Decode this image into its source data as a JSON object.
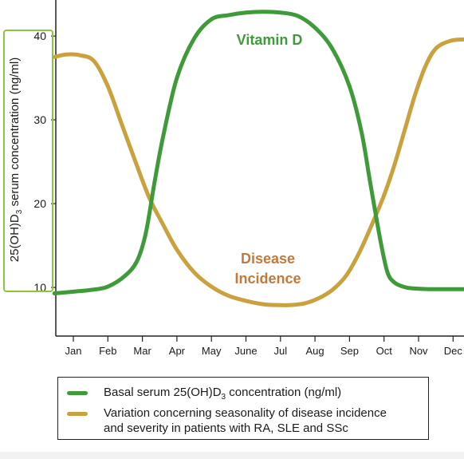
{
  "chart_data": {
    "type": "line",
    "ylabel_parts": [
      "25(OH)D",
      "3",
      " serum concentration (ng/ml)"
    ],
    "categories": [
      "Jan",
      "Feb",
      "Mar",
      "Apr",
      "May",
      "June",
      "Jul",
      "Aug",
      "Sep",
      "Oct",
      "Nov",
      "Dec"
    ],
    "yticks": [
      10,
      20,
      30,
      40
    ],
    "ylim": [
      4.2,
      44.3
    ],
    "grid": false,
    "series": [
      {
        "key": "vitamin_d",
        "label_lines": [
          "Vitamin D"
        ],
        "color": "#3f9a3a",
        "x": [
          -0.55,
          0.0,
          0.5,
          1.0,
          1.5,
          1.85,
          2.1,
          2.35,
          2.6,
          3.0,
          3.5,
          4.0,
          4.5,
          5.0,
          5.5,
          6.0,
          6.5,
          7.0,
          7.5,
          8.0,
          8.35,
          8.6,
          8.9,
          9.1,
          9.3,
          9.55,
          9.8,
          10.3,
          11.0,
          11.7
        ],
        "y": [
          9.3,
          9.5,
          9.7,
          10.1,
          11.4,
          13.2,
          16.5,
          22.5,
          28.0,
          35.0,
          39.7,
          42.0,
          42.5,
          42.8,
          42.9,
          42.8,
          42.4,
          41.0,
          38.5,
          34.0,
          28.5,
          22.5,
          15.5,
          11.8,
          10.6,
          10.1,
          9.9,
          9.8,
          9.8,
          9.8
        ]
      },
      {
        "key": "disease",
        "label_lines": [
          "Disease",
          "Incidence"
        ],
        "color": "#c9a13e",
        "x": [
          -0.55,
          -0.2,
          0.2,
          0.6,
          1.0,
          1.4,
          1.8,
          2.2,
          2.6,
          3.0,
          3.5,
          4.0,
          4.5,
          5.0,
          5.5,
          5.9,
          6.3,
          6.7,
          7.1,
          7.5,
          7.9,
          8.3,
          8.7,
          9.0,
          9.3,
          9.6,
          9.9,
          10.2,
          10.5,
          10.9,
          11.3,
          11.7
        ],
        "y": [
          37.5,
          37.8,
          37.7,
          37.0,
          34.0,
          29.5,
          25.0,
          20.7,
          17.5,
          14.5,
          11.8,
          10.1,
          9.0,
          8.4,
          8.0,
          7.9,
          7.9,
          8.1,
          8.7,
          9.7,
          11.4,
          14.3,
          18.0,
          21.0,
          24.6,
          28.8,
          33.0,
          36.4,
          38.5,
          39.4,
          39.6,
          39.6
        ]
      }
    ]
  },
  "legend": {
    "items": [
      {
        "color": "#3f9a3a",
        "text_main": "Basal serum 25(OH)D",
        "text_sub": "3",
        "text_tail": " concentration (ng/ml)"
      },
      {
        "color": "#c9a13e",
        "line1": "Variation concerning seasonality of disease incidence",
        "line2": "and severity in patients with RA, SLE and SSc"
      }
    ]
  }
}
